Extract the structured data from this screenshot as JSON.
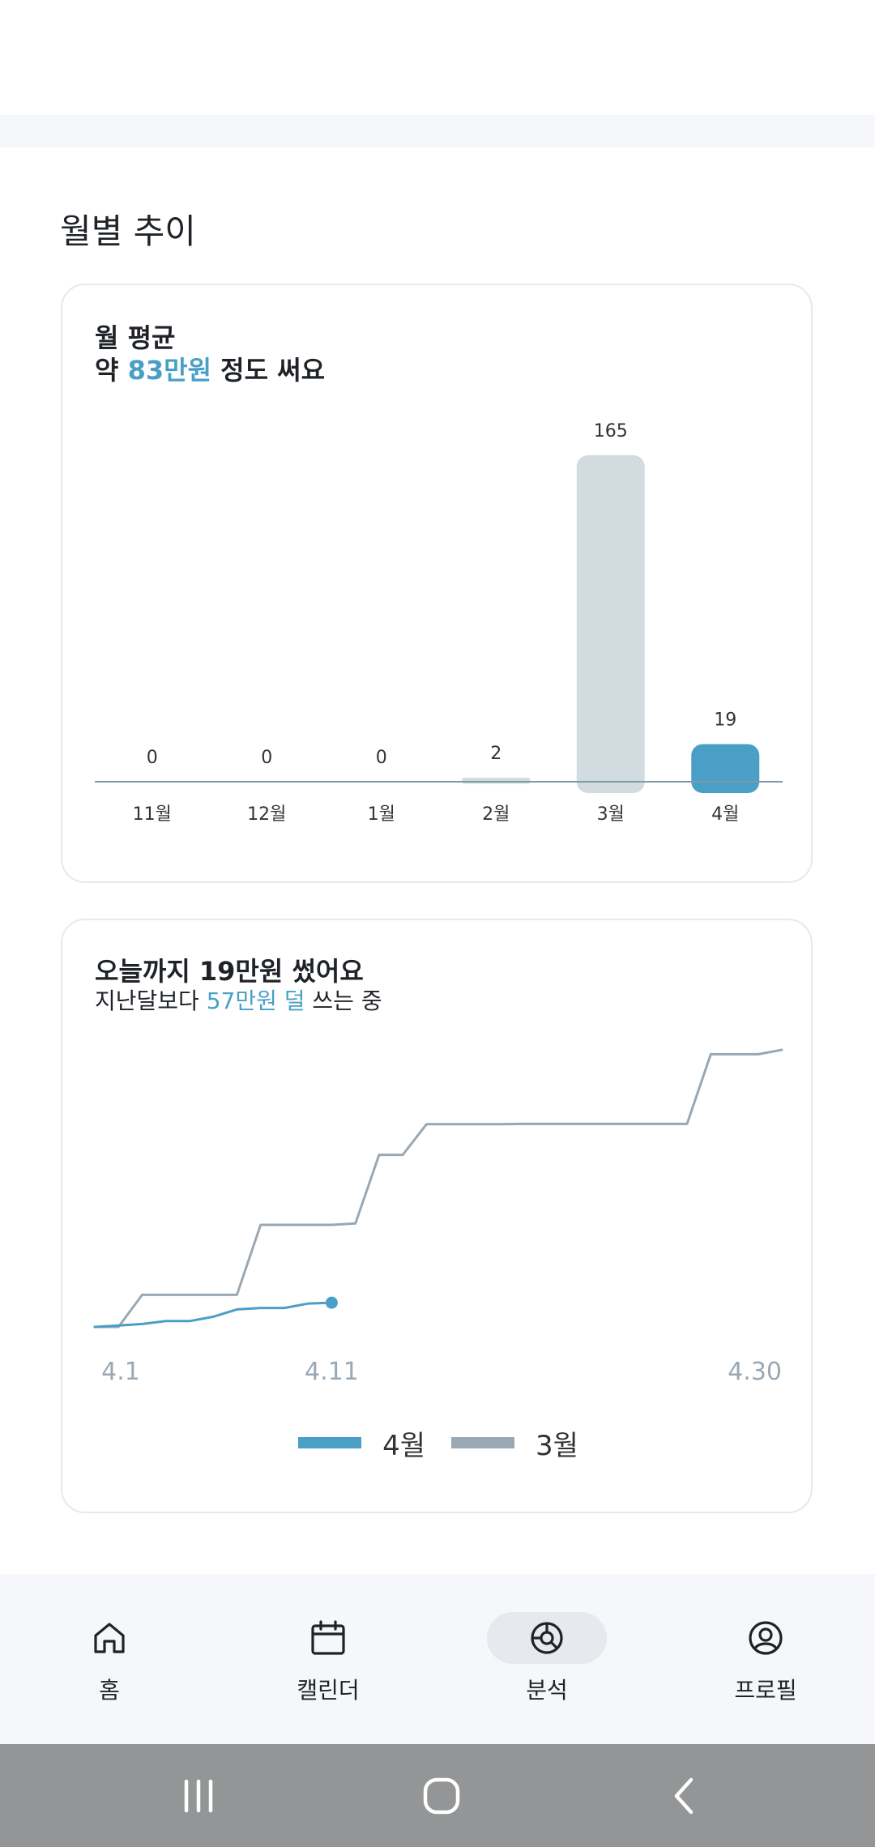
{
  "section": {
    "title": "월별 추이"
  },
  "monthly_card": {
    "line1": "월 평균",
    "line2_prefix": "약 ",
    "line2_highlight": "83만원",
    "line2_suffix": " 정도 써요"
  },
  "progress_card": {
    "line1": "오늘까지 19만원 썼어요",
    "line2_prefix": "지난달보다 ",
    "line2_highlight": "57만원 덜",
    "line2_suffix": " 쓰는 중"
  },
  "colors": {
    "accent": "#4a9fc7",
    "bar_past": "#d1dbe0",
    "line_prev": "#9aa8b4",
    "axis": "#7e9aa5"
  },
  "chart_data": [
    {
      "type": "bar",
      "categories": [
        "11월",
        "12월",
        "1월",
        "2월",
        "3월",
        "4월"
      ],
      "values": [
        0,
        0,
        0,
        2,
        165,
        19
      ],
      "data_labels": [
        "0",
        "0",
        "0",
        "2",
        "165",
        "19"
      ],
      "highlight_category": "4월",
      "ylim": [
        0,
        165
      ]
    },
    {
      "type": "line",
      "x_ticks": [
        "4.1",
        "4.11",
        "4.30"
      ],
      "series": [
        {
          "name": "4월",
          "color": "#4a9fc7",
          "x": [
            1,
            2,
            3,
            4,
            5,
            6,
            7,
            8,
            9,
            10,
            11
          ],
          "y": [
            0,
            0.5,
            1,
            2,
            2,
            3.5,
            6,
            6.5,
            6.5,
            8,
            8.3
          ],
          "end_marker": true
        },
        {
          "name": "3월",
          "color": "#9aa8b4",
          "x": [
            1,
            2,
            3,
            4,
            5,
            6,
            7,
            8,
            9,
            10,
            11,
            12,
            13,
            14,
            15,
            16,
            17,
            18,
            19,
            20,
            21,
            22,
            23,
            24,
            25,
            26,
            27,
            28,
            29,
            30
          ],
          "y": [
            0,
            0,
            11,
            11,
            11,
            11,
            11,
            35,
            35,
            35,
            35,
            35.5,
            59,
            59,
            69.5,
            69.5,
            69.5,
            69.5,
            69.6,
            69.6,
            69.6,
            69.6,
            69.6,
            69.6,
            69.6,
            69.6,
            93.5,
            93.5,
            93.5,
            95
          ]
        }
      ],
      "ylim": [
        0,
        100
      ]
    }
  ],
  "legend": {
    "current": "4월",
    "previous": "3월"
  },
  "nav": {
    "items": [
      {
        "label": "홈",
        "icon": "home-icon"
      },
      {
        "label": "캘린더",
        "icon": "calendar-icon"
      },
      {
        "label": "분석",
        "icon": "analysis-icon",
        "active": true
      },
      {
        "label": "프로필",
        "icon": "profile-icon"
      }
    ]
  }
}
